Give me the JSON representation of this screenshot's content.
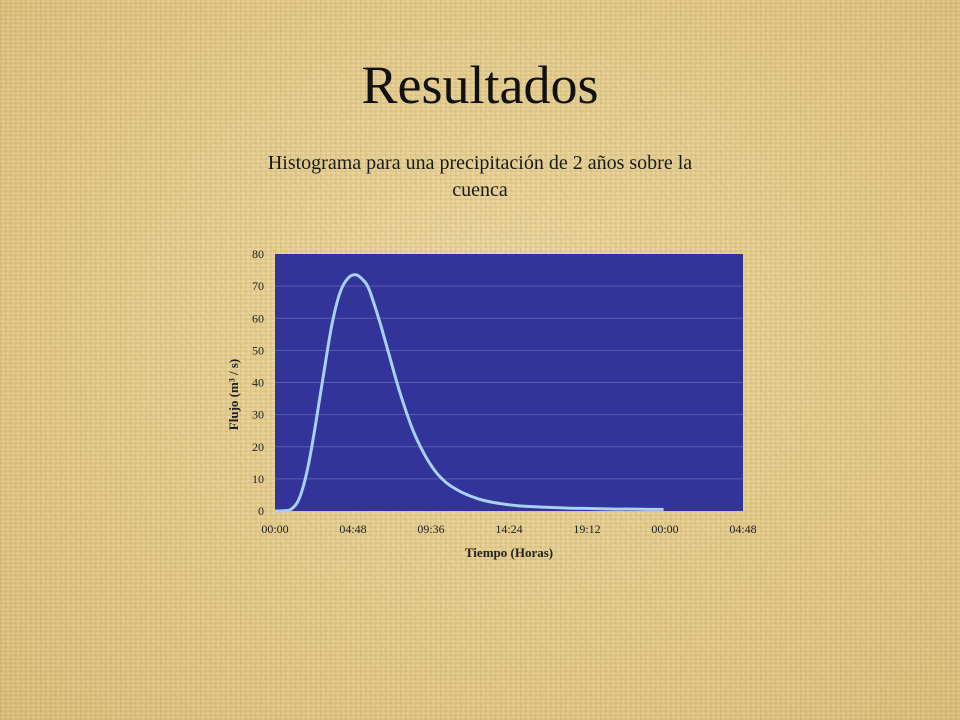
{
  "slide": {
    "title": "Resultados"
  },
  "chart_data": {
    "type": "area",
    "title": "Histograma para una precipitación de 2 años sobre la cuenca",
    "xlabel": "Tiempo (Horas)",
    "ylabel": "Flujo (m³ / s)",
    "ylim": [
      0,
      80
    ],
    "yticks": [
      "0",
      "10",
      "20",
      "30",
      "40",
      "50",
      "60",
      "70",
      "80"
    ],
    "xlim": [
      "00:00",
      "04:48 (day 2)"
    ],
    "xticks": [
      "00:00",
      "04:48",
      "09:36",
      "14:24",
      "19:12",
      "00:00",
      "04:48"
    ],
    "grid": true,
    "legend": "none",
    "colors": {
      "plot_area": "#32349a",
      "line": "#a8d0f2",
      "gridline": "#5a5cb0"
    },
    "series": [
      {
        "x": [
          "00:00",
          "00:30",
          "01:00",
          "01:30",
          "02:00",
          "02:30",
          "03:00",
          "03:30",
          "04:00",
          "04:30",
          "05:00",
          "05:30",
          "05:45",
          "06:00",
          "06:30",
          "07:00",
          "07:30",
          "08:00",
          "08:30",
          "09:00",
          "09:30",
          "10:00",
          "10:30",
          "11:00",
          "11:30",
          "12:00",
          "12:30",
          "13:00",
          "14:00",
          "15:00",
          "16:00",
          "17:00",
          "18:00",
          "19:00",
          "20:00",
          "21:00",
          "22:00",
          "23:00",
          "23:55"
        ],
        "values": [
          0,
          0.1,
          0.6,
          4,
          13,
          27,
          43,
          58,
          68,
          72.5,
          73.5,
          71.5,
          69.5,
          66,
          58,
          49,
          40,
          32,
          25,
          19.5,
          15,
          11.5,
          9,
          7.2,
          5.8,
          4.7,
          3.8,
          3.1,
          2.2,
          1.6,
          1.3,
          1.1,
          0.9,
          0.8,
          0.7,
          0.6,
          0.6,
          0.5,
          0.5
        ]
      }
    ]
  }
}
